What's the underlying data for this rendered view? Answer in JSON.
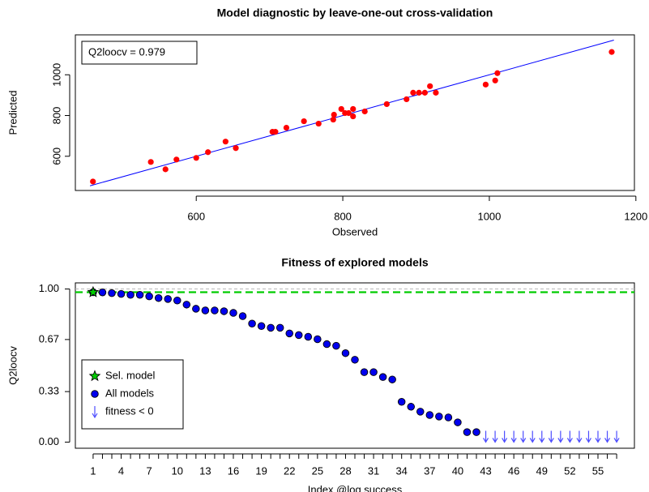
{
  "chart_data": [
    {
      "type": "scatter",
      "title": "Model diagnostic by leave-one-out cross-validation",
      "x_label": "Observed",
      "y_label": "Predicted",
      "annotation": "Q2loocv = 0.979",
      "x": [
        459,
        538,
        558,
        573,
        600,
        616,
        640,
        654,
        704,
        708,
        723,
        747,
        767,
        787,
        788,
        798,
        803,
        808,
        814,
        814,
        830,
        860,
        887,
        896,
        904,
        912,
        919,
        927,
        995,
        1008,
        1011,
        1167
      ],
      "values": [
        476,
        572,
        536,
        584,
        592,
        620,
        672,
        640,
        720,
        720,
        740,
        772,
        760,
        780,
        804,
        832,
        812,
        812,
        796,
        832,
        820,
        856,
        880,
        912,
        912,
        912,
        944,
        912,
        952,
        972,
        1008,
        1112
      ],
      "color": "#ff0000",
      "fit_line": {
        "x": [
          455,
          1170
        ],
        "y": [
          455,
          1170
        ],
        "color": "#0000ff"
      },
      "xlim": [
        435,
        1198
      ],
      "ylim": [
        432,
        1196
      ],
      "xticks": [
        600,
        800,
        1000,
        1200
      ],
      "yticks": [
        600,
        800,
        1000
      ]
    },
    {
      "type": "dot",
      "title": "Fitness of explored models",
      "x_label": "Index @log.success",
      "y_label": "Q2loocv",
      "categories": [
        1,
        null,
        null,
        4,
        null,
        null,
        7,
        null,
        null,
        10,
        null,
        null,
        13,
        null,
        null,
        16,
        null,
        null,
        19,
        null,
        null,
        22,
        null,
        null,
        25,
        null,
        null,
        28,
        null,
        null,
        31,
        null,
        null,
        34,
        null,
        null,
        37,
        null,
        null,
        40,
        null,
        null,
        43,
        null,
        null,
        46,
        null,
        null,
        49,
        null,
        null,
        52,
        null,
        null,
        55,
        null,
        null
      ],
      "series": [
        {
          "name": "Sel. model",
          "color": "#00cc00",
          "marker": "star",
          "hline": true,
          "values": [
            0.979,
            null,
            null,
            null,
            null,
            null,
            null,
            null,
            null,
            null,
            null,
            null,
            null,
            null,
            null,
            null,
            null,
            null,
            null,
            null,
            null,
            null,
            null,
            null,
            null,
            null,
            null,
            null,
            null,
            null,
            null,
            null,
            null,
            null,
            null,
            null,
            null,
            null,
            null,
            null,
            null,
            null,
            null,
            null,
            null,
            null,
            null,
            null,
            null,
            null,
            null,
            null,
            null,
            null,
            null,
            null,
            null
          ]
        },
        {
          "name": "All models",
          "color": "#0000ee",
          "marker": "circle",
          "values": [
            0.979,
            0.978,
            0.973,
            0.968,
            0.962,
            0.962,
            0.952,
            0.941,
            0.935,
            0.925,
            0.898,
            0.871,
            0.86,
            0.86,
            0.855,
            0.844,
            0.823,
            0.774,
            0.758,
            0.747,
            0.747,
            0.71,
            0.699,
            0.688,
            0.672,
            0.64,
            0.629,
            0.581,
            0.538,
            0.457,
            0.457,
            0.425,
            0.409,
            0.263,
            0.231,
            0.199,
            0.177,
            0.167,
            0.161,
            0.129,
            0.065,
            0.065,
            null,
            null,
            null,
            null,
            null,
            null,
            null,
            null,
            null,
            null,
            null,
            null,
            null,
            null,
            null
          ]
        },
        {
          "name": "fitness < 0",
          "color": "#4d4dff",
          "marker": "arrow",
          "values": [
            null,
            null,
            null,
            null,
            null,
            null,
            null,
            null,
            null,
            null,
            null,
            null,
            null,
            null,
            null,
            null,
            null,
            null,
            null,
            null,
            null,
            null,
            null,
            null,
            null,
            null,
            null,
            null,
            null,
            null,
            null,
            null,
            null,
            null,
            null,
            null,
            null,
            null,
            null,
            null,
            null,
            null,
            0,
            0,
            0,
            0,
            0,
            0,
            0,
            0,
            0,
            0,
            0,
            0,
            0,
            0,
            0
          ]
        }
      ],
      "hlines": [
        {
          "value": 1,
          "color": "#b8b8b8"
        }
      ],
      "ylim": [
        -0.04,
        1.04
      ],
      "yticks": [
        {
          "value": 0,
          "label": "0.00"
        },
        {
          "value": 0.33,
          "label": "0.33"
        },
        {
          "value": 0.67,
          "label": "0.67"
        },
        {
          "value": 1,
          "label": "1.00"
        }
      ],
      "legend": "bottom-left"
    }
  ]
}
